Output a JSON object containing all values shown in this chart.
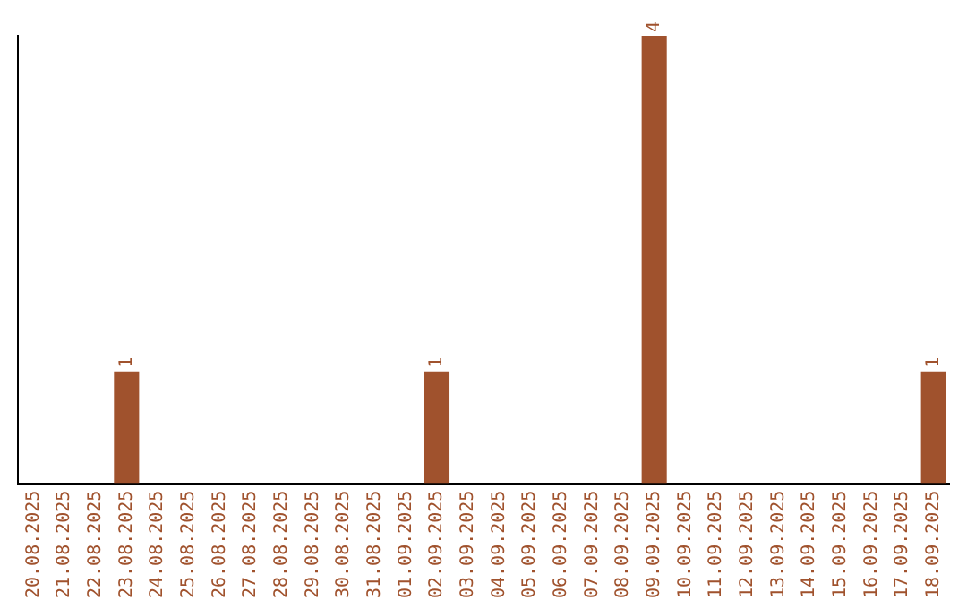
{
  "chart_data": {
    "type": "bar",
    "categories": [
      "20.08.2025",
      "21.08.2025",
      "22.08.2025",
      "23.08.2025",
      "24.08.2025",
      "25.08.2025",
      "26.08.2025",
      "27.08.2025",
      "28.08.2025",
      "29.08.2025",
      "30.08.2025",
      "31.08.2025",
      "01.09.2025",
      "02.09.2025",
      "03.09.2025",
      "04.09.2025",
      "05.09.2025",
      "06.09.2025",
      "07.09.2025",
      "08.09.2025",
      "09.09.2025",
      "10.09.2025",
      "11.09.2025",
      "12.09.2025",
      "13.09.2025",
      "14.09.2025",
      "15.09.2025",
      "16.09.2025",
      "17.09.2025",
      "18.09.2025"
    ],
    "values": [
      0,
      0,
      0,
      1,
      0,
      0,
      0,
      0,
      0,
      0,
      0,
      0,
      0,
      1,
      0,
      0,
      0,
      0,
      0,
      0,
      4,
      0,
      0,
      0,
      0,
      0,
      0,
      0,
      0,
      1
    ],
    "value_labels": [
      null,
      null,
      null,
      "1",
      null,
      null,
      null,
      null,
      null,
      null,
      null,
      null,
      null,
      "1",
      null,
      null,
      null,
      null,
      null,
      null,
      "4",
      null,
      null,
      null,
      null,
      null,
      null,
      null,
      null,
      "1"
    ],
    "color": "#a0522d",
    "ylim": [
      0,
      4
    ],
    "grid": false,
    "legend": false,
    "tick_labels": "x"
  }
}
